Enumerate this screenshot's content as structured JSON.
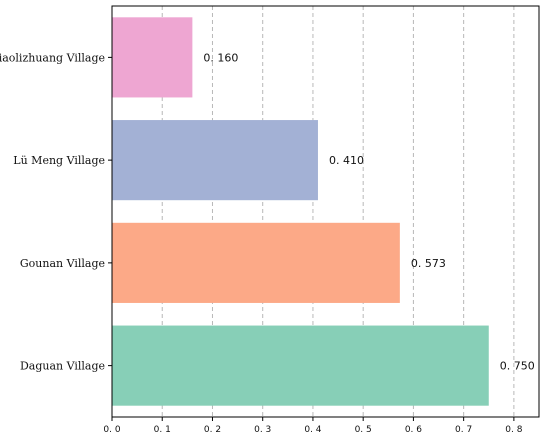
{
  "chart_data": {
    "type": "bar",
    "orientation": "horizontal",
    "categories": [
      "Xiaolizhuang Village",
      "Lü Meng Village",
      "Gounan Village",
      "Daguan Village"
    ],
    "values": [
      0.16,
      0.41,
      0.573,
      0.75
    ],
    "data_labels": [
      "0. 160",
      "0. 410",
      "0. 573",
      "0. 750"
    ],
    "colors": [
      "#eea6d2",
      "#a3b1d5",
      "#fca987",
      "#87cfb7"
    ],
    "xlim": [
      0,
      0.85
    ],
    "xticks": [
      0,
      0.1,
      0.2,
      0.3,
      0.4,
      0.5,
      0.6,
      0.7,
      0.8
    ],
    "xtick_labels": [
      "0. 0",
      "0. 1",
      "0. 2",
      "0. 3",
      "0. 4",
      "0. 5",
      "0. 6",
      "0. 7",
      "0. 8"
    ],
    "grid": "vertical-dashed",
    "title": "",
    "xlabel": "",
    "ylabel": ""
  }
}
